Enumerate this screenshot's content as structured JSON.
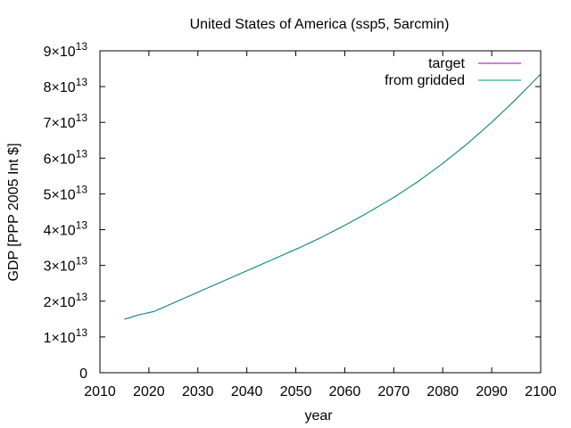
{
  "chart_data": {
    "type": "line",
    "title": "United States of America (ssp5, 5arcmin)",
    "xlabel": "year",
    "ylabel": "GDP [PPP 2005 Int $]",
    "xlim": [
      2010,
      2100
    ],
    "ylim": [
      0,
      90000000000000
    ],
    "x_ticks": [
      2010,
      2020,
      2030,
      2040,
      2050,
      2060,
      2070,
      2080,
      2090,
      2100
    ],
    "x_tick_labels": [
      "2010",
      "2020",
      "2030",
      "2040",
      "2050",
      "2060",
      "2070",
      "2080",
      "2090",
      "2100"
    ],
    "y_ticks": [
      {
        "value": 0,
        "mantissa": "0",
        "exponent": ""
      },
      {
        "value": 10000000000000,
        "mantissa": "1×10",
        "exponent": "13"
      },
      {
        "value": 20000000000000,
        "mantissa": "2×10",
        "exponent": "13"
      },
      {
        "value": 30000000000000,
        "mantissa": "3×10",
        "exponent": "13"
      },
      {
        "value": 40000000000000,
        "mantissa": "4×10",
        "exponent": "13"
      },
      {
        "value": 50000000000000,
        "mantissa": "5×10",
        "exponent": "13"
      },
      {
        "value": 60000000000000,
        "mantissa": "6×10",
        "exponent": "13"
      },
      {
        "value": 70000000000000,
        "mantissa": "7×10",
        "exponent": "13"
      },
      {
        "value": 80000000000000,
        "mantissa": "8×10",
        "exponent": "13"
      },
      {
        "value": 90000000000000,
        "mantissa": "9×10",
        "exponent": "13"
      }
    ],
    "grid": false,
    "legend_position": "top-right",
    "x": [
      2015,
      2016,
      2017,
      2018,
      2019,
      2020,
      2021,
      2022,
      2023,
      2024,
      2025,
      2026,
      2027,
      2028,
      2029,
      2030,
      2031,
      2032,
      2033,
      2034,
      2035,
      2036,
      2037,
      2038,
      2039,
      2040,
      2041,
      2042,
      2043,
      2044,
      2045,
      2046,
      2047,
      2048,
      2049,
      2050,
      2051,
      2052,
      2053,
      2054,
      2055,
      2056,
      2057,
      2058,
      2059,
      2060,
      2061,
      2062,
      2063,
      2064,
      2065,
      2066,
      2067,
      2068,
      2069,
      2070,
      2071,
      2072,
      2073,
      2074,
      2075,
      2076,
      2077,
      2078,
      2079,
      2080,
      2081,
      2082,
      2083,
      2084,
      2085,
      2086,
      2087,
      2088,
      2089,
      2090,
      2091,
      2092,
      2093,
      2094,
      2095,
      2096,
      2097,
      2098,
      2099,
      2100
    ],
    "series": [
      {
        "name": "target",
        "color": "#9400d3",
        "values": [
          15000000000000.0,
          15300000000000.0,
          15800000000000.0,
          16200000000000.0,
          16500000000000.0,
          16800000000000.0,
          17100000000000.0,
          17700000000000.0,
          18300000000000.0,
          18900000000000.0,
          19500000000000.0,
          20100000000000.0,
          20700000000000.0,
          21300000000000.0,
          21900000000000.0,
          22500000000000.0,
          23100000000000.0,
          23700000000000.0,
          24300000000000.0,
          24900000000000.0,
          25500000000000.0,
          26100000000000.0,
          26700000000000.0,
          27300000000000.0,
          27900000000000.0,
          28500000000000.0,
          29100000000000.0,
          29700000000000.0,
          30300000000000.0,
          30900000000000.0,
          31500000000000.0,
          32100000000000.0,
          32700000000000.0,
          33300000000000.0,
          33900000000000.0,
          34500000000000.0,
          35100000000000.0,
          35750000000000.0,
          36400000000000.0,
          37050000000000.0,
          37700000000000.0,
          38400000000000.0,
          39100000000000.0,
          39800000000000.0,
          40500000000000.0,
          41200000000000.0,
          41950000000000.0,
          42700000000000.0,
          43450000000000.0,
          44200000000000.0,
          45000000000000.0,
          45800000000000.0,
          46600000000000.0,
          47400000000000.0,
          48200000000000.0,
          49000000000000.0,
          49900000000000.0,
          50800000000000.0,
          51700000000000.0,
          52600000000000.0,
          53500000000000.0,
          54500000000000.0,
          55500000000000.0,
          56500000000000.0,
          57500000000000.0,
          58500000000000.0,
          59600000000000.0,
          60700000000000.0,
          61800000000000.0,
          62900000000000.0,
          64000000000000.0,
          65200000000000.0,
          66400000000000.0,
          67600000000000.0,
          68800000000000.0,
          70000000000000.0,
          71300000000000.0,
          72600000000000.0,
          73900000000000.0,
          75200000000000.0,
          76500000000000.0,
          77900000000000.0,
          79300000000000.0,
          80700000000000.0,
          82100000000000.0,
          83500000000000.0
        ]
      },
      {
        "name": "from gridded",
        "color": "#009e73",
        "values": [
          15000000000000.0,
          15300000000000.0,
          15800000000000.0,
          16200000000000.0,
          16500000000000.0,
          16800000000000.0,
          17100000000000.0,
          17700000000000.0,
          18300000000000.0,
          18900000000000.0,
          19500000000000.0,
          20100000000000.0,
          20700000000000.0,
          21300000000000.0,
          21900000000000.0,
          22500000000000.0,
          23100000000000.0,
          23700000000000.0,
          24300000000000.0,
          24900000000000.0,
          25500000000000.0,
          26100000000000.0,
          26700000000000.0,
          27300000000000.0,
          27900000000000.0,
          28500000000000.0,
          29100000000000.0,
          29700000000000.0,
          30300000000000.0,
          30900000000000.0,
          31500000000000.0,
          32100000000000.0,
          32700000000000.0,
          33300000000000.0,
          33900000000000.0,
          34500000000000.0,
          35100000000000.0,
          35750000000000.0,
          36400000000000.0,
          37050000000000.0,
          37700000000000.0,
          38400000000000.0,
          39100000000000.0,
          39800000000000.0,
          40500000000000.0,
          41200000000000.0,
          41950000000000.0,
          42700000000000.0,
          43450000000000.0,
          44200000000000.0,
          45000000000000.0,
          45800000000000.0,
          46600000000000.0,
          47400000000000.0,
          48200000000000.0,
          49000000000000.0,
          49900000000000.0,
          50800000000000.0,
          51700000000000.0,
          52600000000000.0,
          53500000000000.0,
          54500000000000.0,
          55500000000000.0,
          56500000000000.0,
          57500000000000.0,
          58500000000000.0,
          59600000000000.0,
          60700000000000.0,
          61800000000000.0,
          62900000000000.0,
          64000000000000.0,
          65200000000000.0,
          66400000000000.0,
          67600000000000.0,
          68800000000000.0,
          70000000000000.0,
          71300000000000.0,
          72600000000000.0,
          73900000000000.0,
          75200000000000.0,
          76500000000000.0,
          77900000000000.0,
          79300000000000.0,
          80700000000000.0,
          82100000000000.0,
          83500000000000.0
        ]
      }
    ]
  }
}
